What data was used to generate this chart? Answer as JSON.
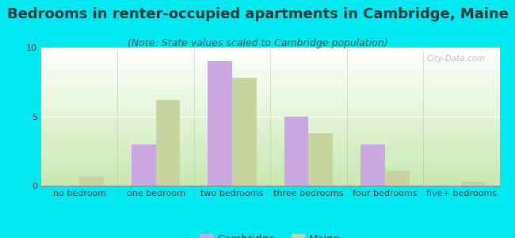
{
  "title": "Bedrooms in renter-occupied apartments in Cambridge, Maine",
  "subtitle": "(Note: State values scaled to Cambridge population)",
  "categories": [
    "no bedroom",
    "one bedroom",
    "two bedrooms",
    "three bedrooms",
    "four bedrooms",
    "five+ bedrooms"
  ],
  "cambridge_values": [
    0,
    3,
    9,
    5,
    3,
    0
  ],
  "maine_values": [
    0.7,
    6.2,
    7.8,
    3.8,
    1.1,
    0.3
  ],
  "cambridge_color": "#c9a8e0",
  "maine_color": "#c8d4a0",
  "background_outer": "#00e8f0",
  "ylim": [
    0,
    10
  ],
  "yticks": [
    0,
    5,
    10
  ],
  "bar_width": 0.32,
  "legend_cambridge": "Cambridge",
  "legend_maine": "Maine",
  "title_fontsize": 13,
  "subtitle_fontsize": 9,
  "axis_label_fontsize": 8,
  "watermark": "City-Data.com"
}
